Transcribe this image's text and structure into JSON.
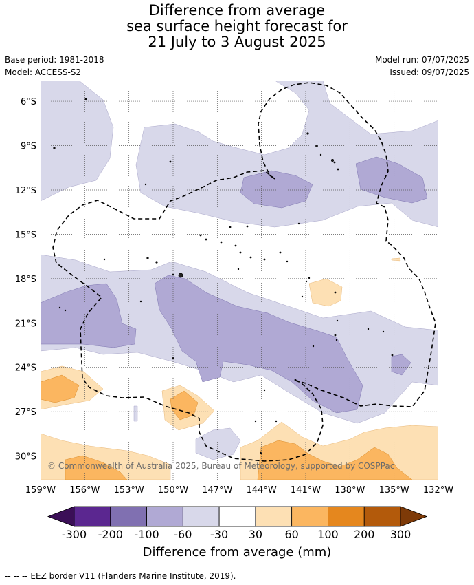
{
  "title": {
    "line1": "Difference from average",
    "line2": "sea surface height forecast for",
    "line3": "21 July to 3 August 2025"
  },
  "meta": {
    "base_period": "Base period: 1981-2018",
    "model": "Model: ACCESS-S2",
    "model_run": "Model run: 07/07/2025",
    "issued": "Issued: 09/07/2025"
  },
  "map": {
    "lon_range": [
      -159,
      -132
    ],
    "lat_range": [
      -31.6,
      -4.6
    ],
    "lon_ticks": [
      "159°W",
      "156°W",
      "153°W",
      "150°W",
      "147°W",
      "144°W",
      "141°W",
      "138°W",
      "135°W",
      "132°W"
    ],
    "lat_ticks": [
      "6°S",
      "9°S",
      "12°S",
      "15°S",
      "18°S",
      "21°S",
      "24°S",
      "27°S",
      "30°S"
    ],
    "gridlines": "dotted",
    "copyright": "© Commonwealth of Australia 2025, Bureau of Meteorology, supported by COSPPac",
    "eez_border_style": "dashed"
  },
  "colorbar": {
    "labels": [
      "-300",
      "-200",
      "-100",
      "-60",
      "-30",
      "30",
      "60",
      "100",
      "200",
      "300"
    ],
    "colors": [
      "#3b0f57",
      "#5b2790",
      "#8070b1",
      "#b0a9d4",
      "#d8d8ea",
      "#ffffff",
      "#fde0b4",
      "#fbb660",
      "#e5871e",
      "#b35a0b",
      "#7e3a08"
    ],
    "title": "Difference from average (mm)"
  },
  "footnote": "--  --  -- EEZ border V11 (Flanders Marine Institute, 2019)."
}
